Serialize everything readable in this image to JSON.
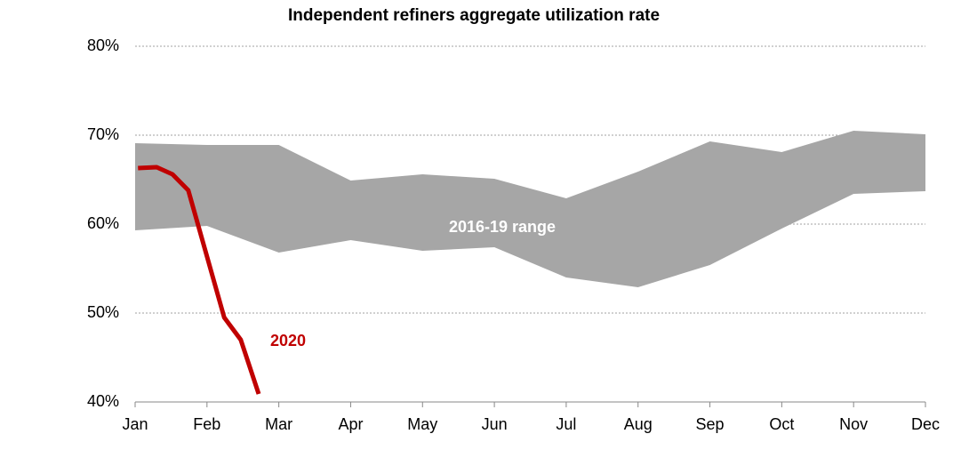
{
  "chart_data": {
    "type": "line",
    "title": "Independent refiners aggregate utilization rate",
    "xlim": [
      0,
      11
    ],
    "xticks": [
      {
        "value": 0,
        "label": "Jan"
      },
      {
        "value": 1,
        "label": "Feb"
      },
      {
        "value": 2,
        "label": "Mar"
      },
      {
        "value": 3,
        "label": "Apr"
      },
      {
        "value": 4,
        "label": "May"
      },
      {
        "value": 5,
        "label": "Jun"
      },
      {
        "value": 6,
        "label": "Jul"
      },
      {
        "value": 7,
        "label": "Aug"
      },
      {
        "value": 8,
        "label": "Sep"
      },
      {
        "value": 9,
        "label": "Oct"
      },
      {
        "value": 10,
        "label": "Nov"
      },
      {
        "value": 11,
        "label": "Dec"
      }
    ],
    "ylim": [
      40,
      80
    ],
    "yticks": [
      {
        "value": 40,
        "label": "40%"
      },
      {
        "value": 50,
        "label": "50%"
      },
      {
        "value": 60,
        "label": "60%"
      },
      {
        "value": 70,
        "label": "70%"
      },
      {
        "value": 80,
        "label": "80%"
      }
    ],
    "grid": true,
    "series": [
      {
        "name": "2016-19 range",
        "color": "#a6a6a6",
        "x": [
          0,
          1,
          2,
          3,
          4,
          5,
          6,
          7,
          8,
          9,
          10,
          11
        ],
        "low": [
          59.3,
          59.8,
          56.8,
          58.2,
          57.0,
          57.4,
          54.0,
          52.9,
          55.4,
          59.5,
          63.4,
          63.7
        ],
        "high": [
          69.1,
          68.9,
          68.9,
          64.9,
          65.6,
          65.1,
          62.9,
          65.9,
          69.3,
          68.1,
          70.5,
          70.1
        ]
      },
      {
        "name": "2020",
        "color": "#c00000",
        "x": [
          0.04,
          0.3,
          0.52,
          0.74,
          1.24,
          1.47,
          1.72
        ],
        "values": [
          66.3,
          66.4,
          65.6,
          63.8,
          49.5,
          47.0,
          40.9
        ]
      }
    ]
  }
}
